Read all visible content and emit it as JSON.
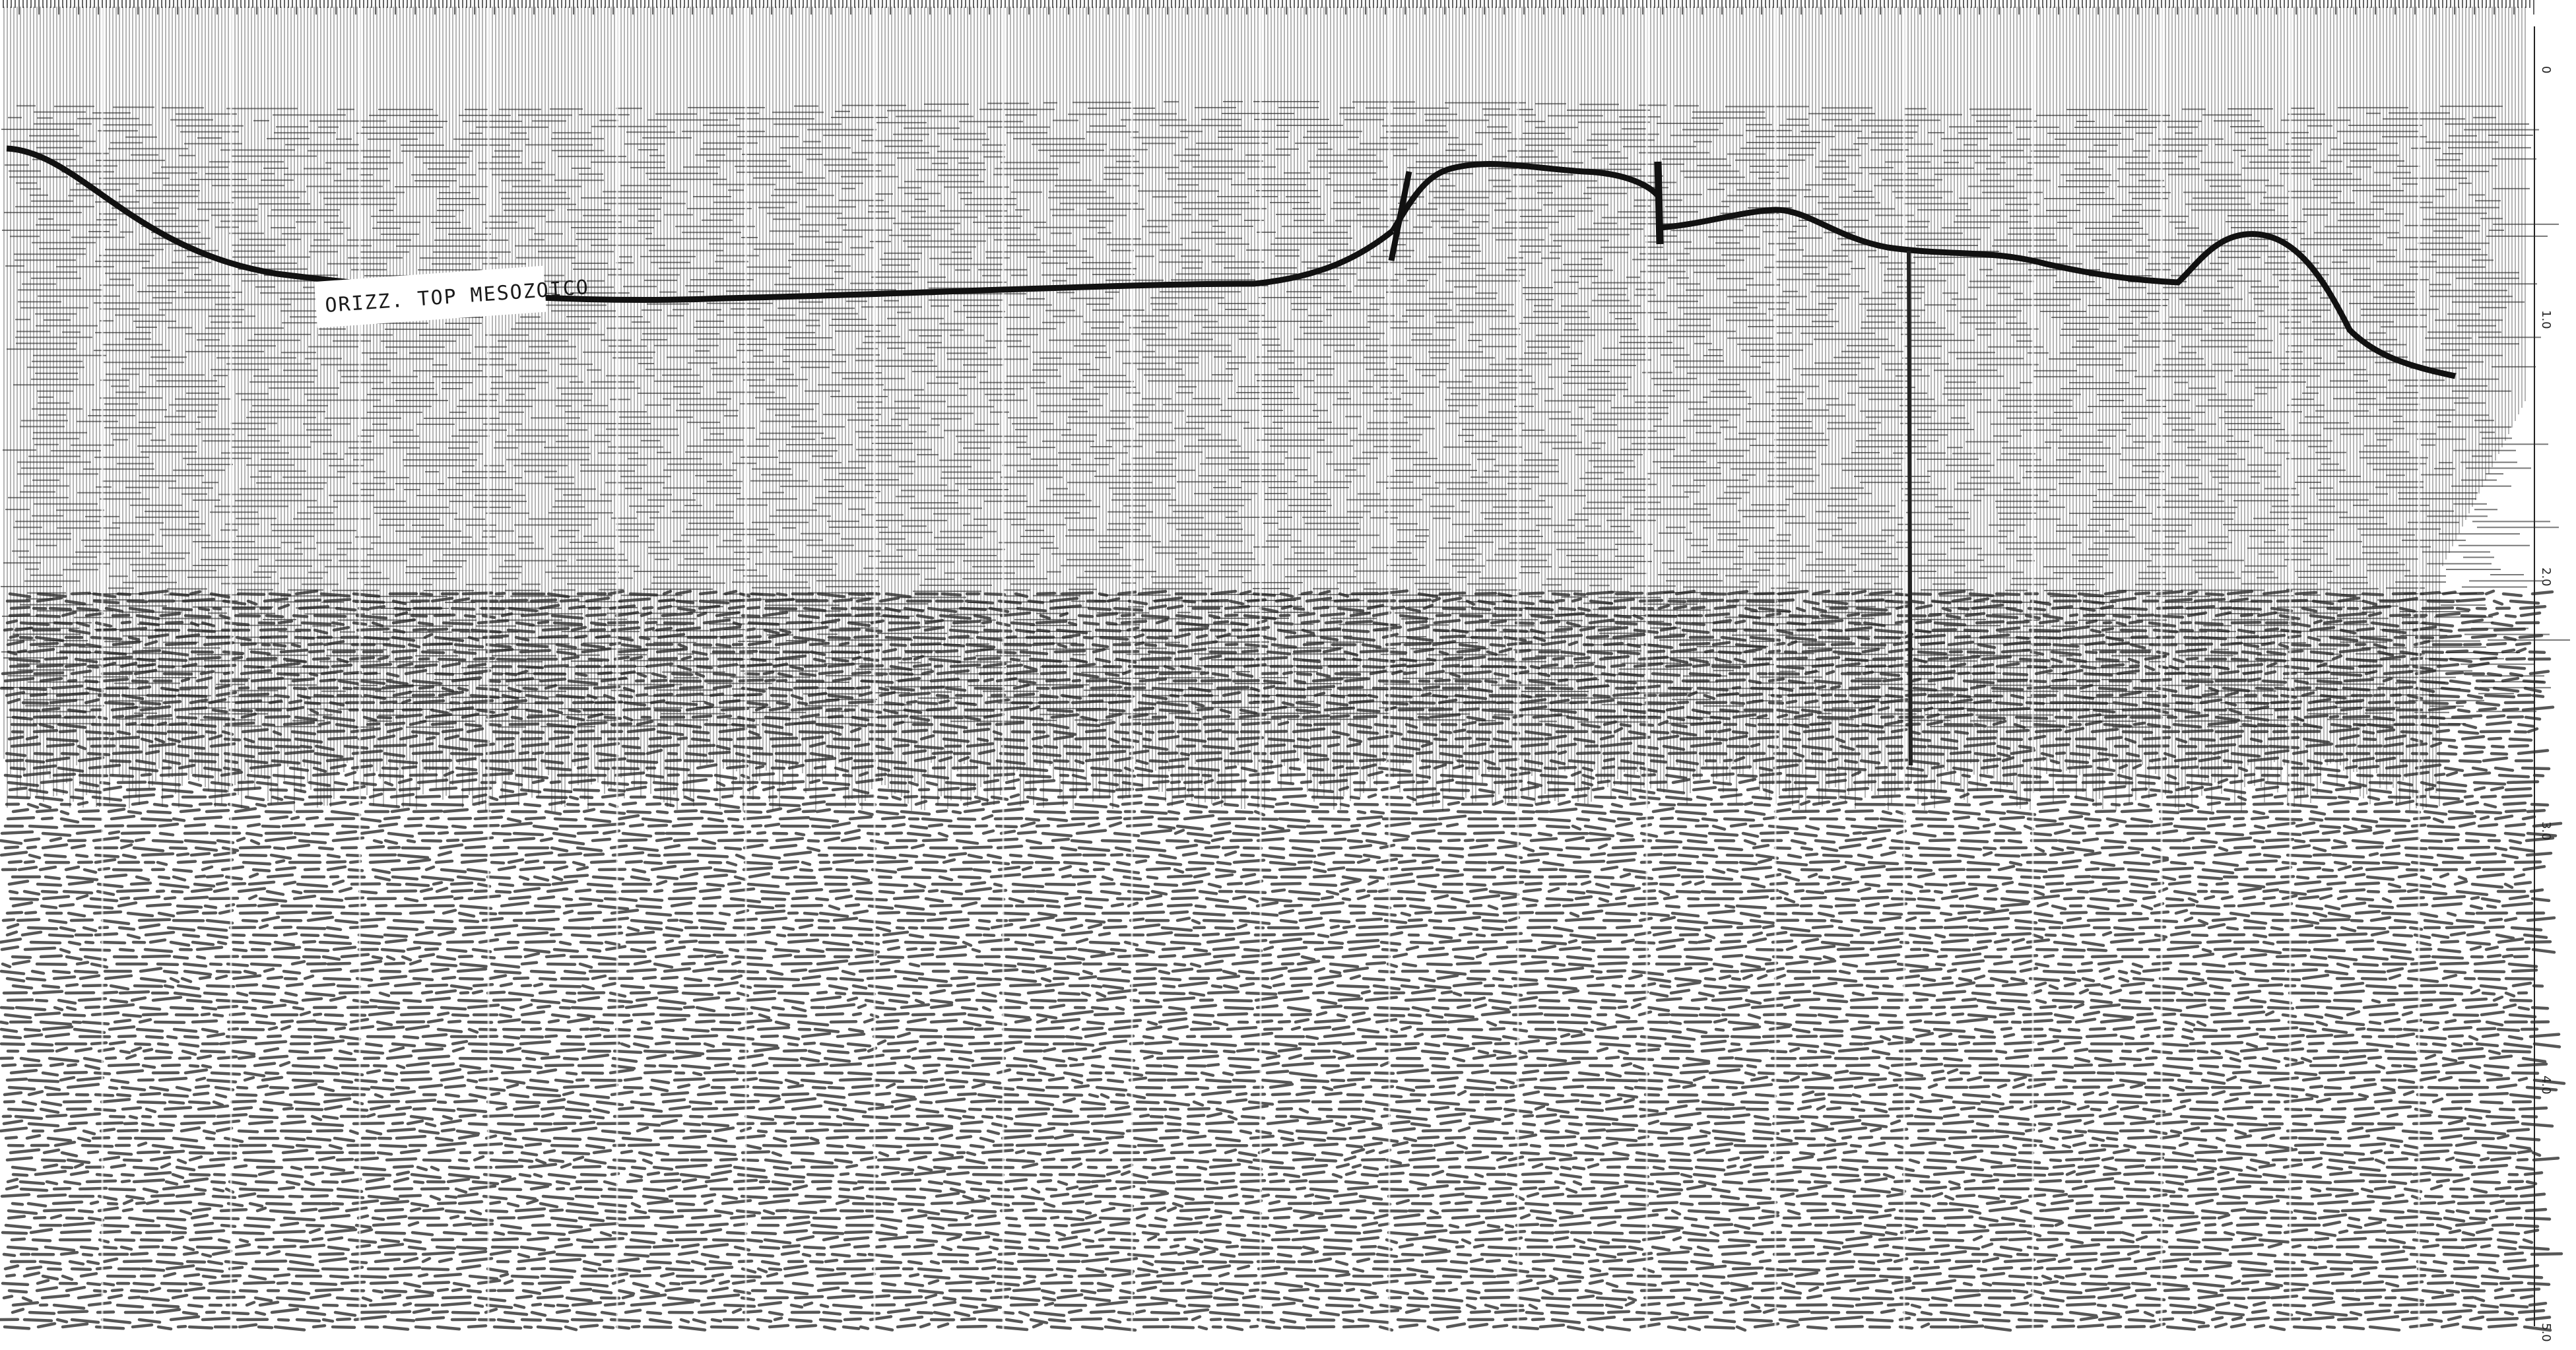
{
  "section": {
    "horizon_label": "ORIZZ. TOP MESOZOICO",
    "time_axis_labels": [
      "0",
      "1.0",
      "2.0",
      "3.0",
      "4.0",
      "5.0"
    ]
  },
  "colors": {
    "trace_ink": "#1f1f1f",
    "paper": "#ffffff",
    "horizon_line": "#111111"
  },
  "icons": [
    "seismic-section"
  ]
}
